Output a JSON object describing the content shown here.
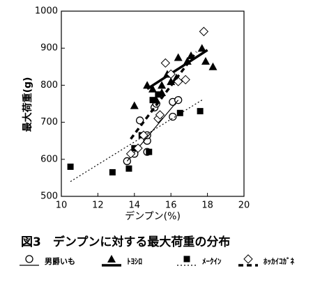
{
  "chart_data": {
    "type": "scatter",
    "caption": "図3　デンプンに対する最大荷重の分布",
    "x_label": "デンプン(%)",
    "y_label": "最大荷重(g)",
    "xlim": [
      10,
      20
    ],
    "xticks": [
      10,
      12,
      14,
      16,
      18,
      20
    ],
    "ylim": [
      500,
      1000
    ],
    "yticks": [
      500,
      600,
      700,
      800,
      900,
      1000
    ],
    "series": [
      {
        "name": "男爵いも",
        "color": "#000000",
        "marker": "circle",
        "line": "solid-thin",
        "x": [
          13.6,
          14.0,
          14.3,
          14.7,
          14.7,
          15.1,
          15.2,
          16.1,
          16.4,
          16.1,
          14.7
        ],
        "y": [
          595,
          615,
          705,
          650,
          665,
          740,
          750,
          755,
          760,
          715,
          620
        ],
        "fit_x": [
          13.6,
          16.4
        ],
        "fit_y": [
          595,
          760
        ]
      },
      {
        "name": "ﾄﾖｼﾛ",
        "color": "#000000",
        "marker": "triangle",
        "line": "solid-thick",
        "x": [
          14.7,
          15.0,
          15.2,
          15.5,
          15.8,
          16.0,
          16.4,
          16.9,
          17.1,
          17.7,
          17.9,
          18.3,
          14.0,
          15.5,
          16.3
        ],
        "y": [
          800,
          790,
          760,
          800,
          830,
          810,
          875,
          865,
          880,
          900,
          865,
          850,
          745,
          780,
          820
        ],
        "fit_x": [
          14.7,
          18.0
        ],
        "fit_y": [
          790,
          895
        ]
      },
      {
        "name": "ﾒｰｸｲﾝ",
        "color": "#000000",
        "marker": "square",
        "line": "dotted-thin",
        "x": [
          10.5,
          12.8,
          13.7,
          14.0,
          14.4,
          14.8,
          15.3,
          16.5,
          17.6,
          15.0
        ],
        "y": [
          580,
          565,
          575,
          630,
          665,
          620,
          775,
          725,
          730,
          760
        ],
        "fit_x": [
          10.5,
          17.7
        ],
        "fit_y": [
          540,
          760
        ]
      },
      {
        "name": "ﾎｯｶｲｺｶﾞﾈ",
        "color": "#000000",
        "marker": "diamond",
        "line": "dashed-thick",
        "x": [
          13.8,
          14.2,
          14.5,
          15.3,
          15.7,
          16.0,
          16.4,
          16.8,
          17.8,
          15.4
        ],
        "y": [
          615,
          630,
          665,
          710,
          860,
          830,
          810,
          815,
          945,
          720
        ],
        "fit_x": [
          13.8,
          17.4
        ],
        "fit_y": [
          655,
          890
        ]
      }
    ]
  }
}
